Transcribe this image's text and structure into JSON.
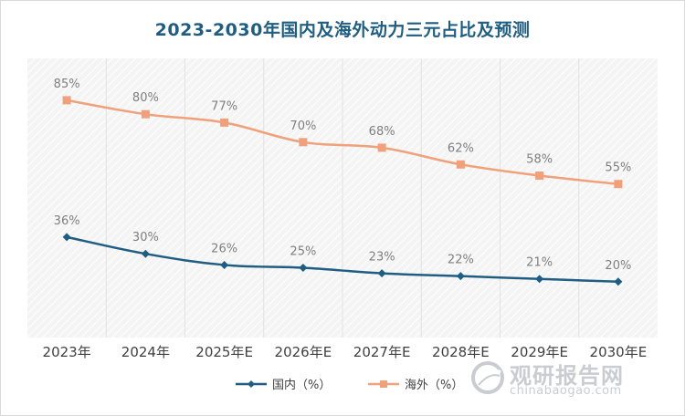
{
  "chart_data": {
    "type": "line",
    "title": "2023-2030年国内及海外动力三元占比及预测",
    "categories": [
      "2023年",
      "2024年",
      "2025年E",
      "2026年E",
      "2027年E",
      "2028年E",
      "2029年E",
      "2030年E"
    ],
    "series": [
      {
        "name": "国内（%）",
        "values": [
          36,
          30,
          26,
          25,
          23,
          22,
          21,
          20
        ],
        "labels": [
          "36%",
          "30%",
          "26%",
          "25%",
          "23%",
          "22%",
          "21%",
          "20%"
        ],
        "color": "#1f5e82",
        "marker": "diamond"
      },
      {
        "name": "海外（%）",
        "values": [
          85,
          80,
          77,
          70,
          68,
          62,
          58,
          55
        ],
        "labels": [
          "85%",
          "80%",
          "77%",
          "70%",
          "68%",
          "62%",
          "58%",
          "55%"
        ],
        "color": "#f0a07a",
        "marker": "square"
      }
    ],
    "ylim": [
      0,
      100
    ],
    "grid": "vertical",
    "legend_position": "bottom"
  },
  "watermark": {
    "name": "观研报告网",
    "url": "chinabaogao.com"
  }
}
